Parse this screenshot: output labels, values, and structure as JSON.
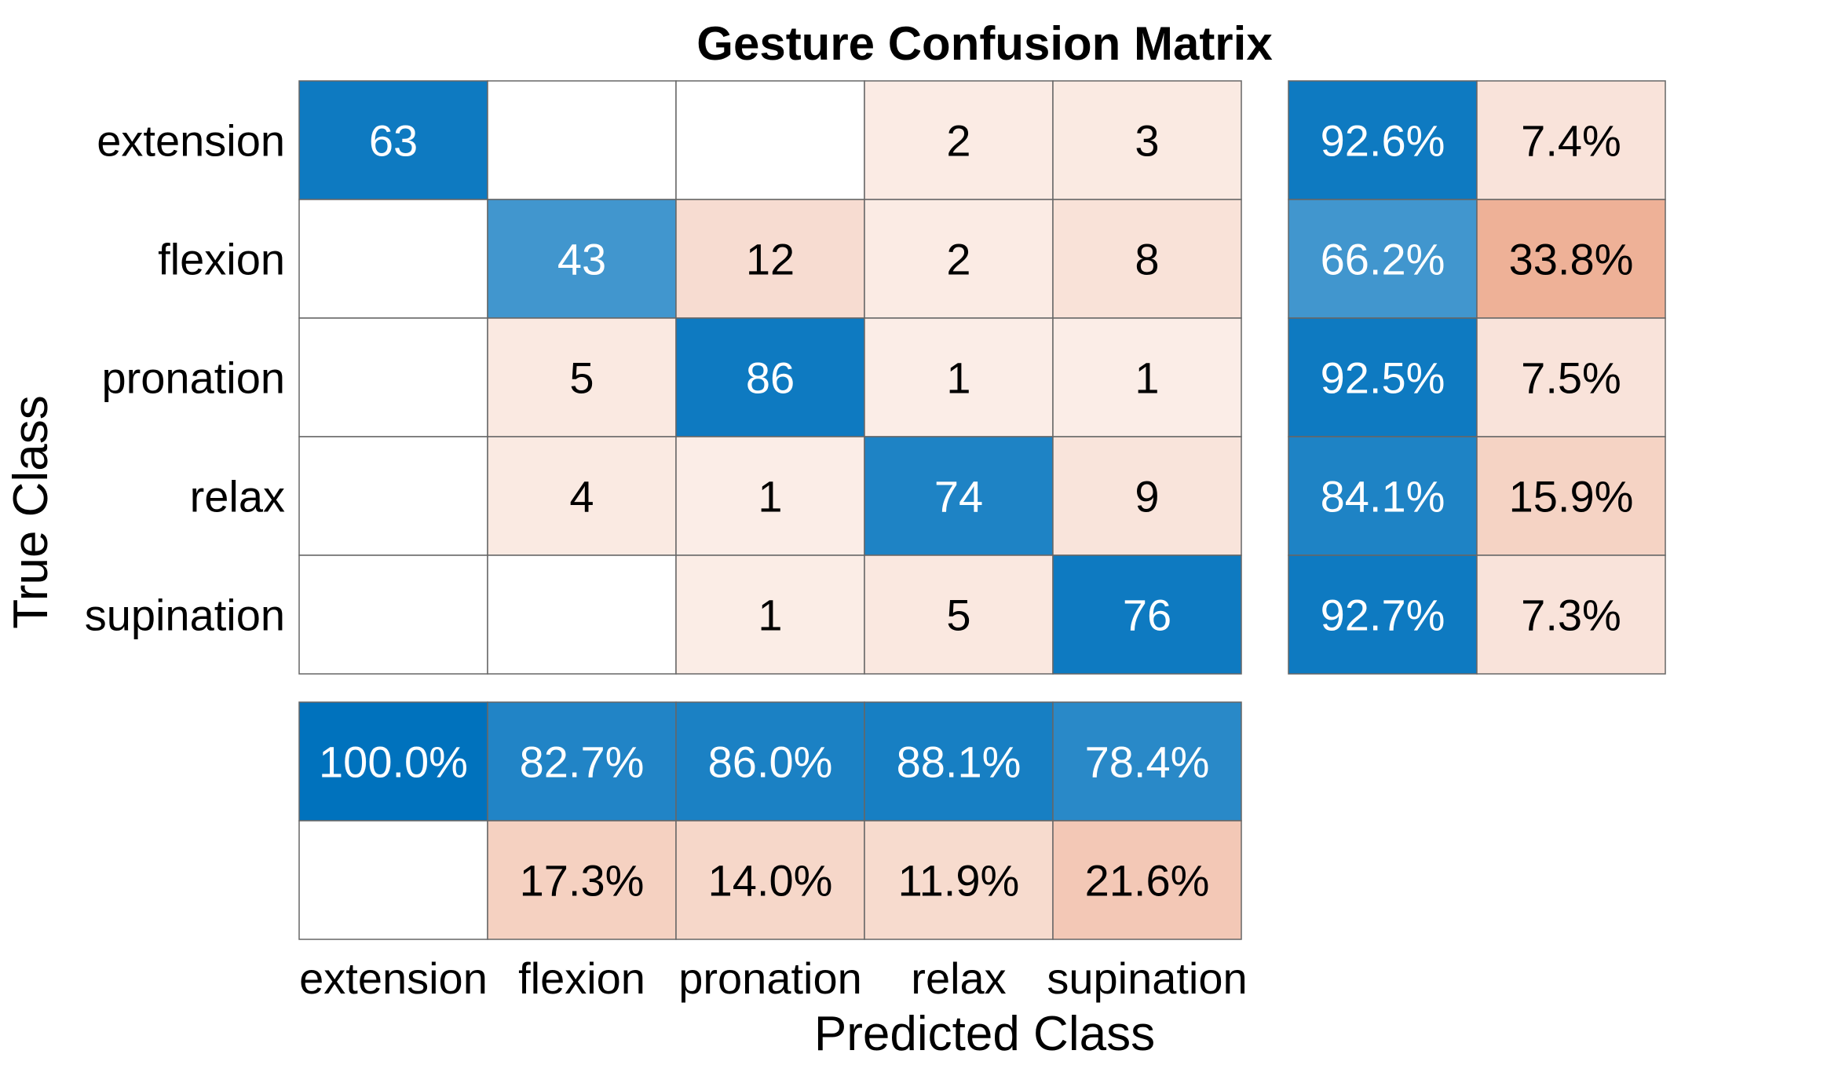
{
  "chart_data": {
    "type": "heatmap",
    "title": "Gesture Confusion Matrix",
    "xlabel": "Predicted Class",
    "ylabel": "True Class",
    "classes": [
      "extension",
      "flexion",
      "pronation",
      "relax",
      "supination"
    ],
    "matrix": [
      [
        63,
        0,
        0,
        2,
        3
      ],
      [
        0,
        43,
        12,
        2,
        8
      ],
      [
        0,
        5,
        86,
        1,
        1
      ],
      [
        0,
        4,
        1,
        74,
        9
      ],
      [
        0,
        0,
        1,
        5,
        76
      ]
    ],
    "row_summary": {
      "correct": [
        "92.6%",
        "66.2%",
        "92.5%",
        "84.1%",
        "92.7%"
      ],
      "incorrect": [
        "7.4%",
        "33.8%",
        "7.5%",
        "15.9%",
        "7.3%"
      ]
    },
    "column_summary": {
      "correct": [
        "100.0%",
        "82.7%",
        "86.0%",
        "88.1%",
        "78.4%"
      ],
      "incorrect": [
        "",
        "17.3%",
        "14.0%",
        "11.9%",
        "21.6%"
      ]
    },
    "colors": {
      "correct": "#0072bd",
      "incorrect": "#d95319",
      "grid": "#666666"
    }
  }
}
